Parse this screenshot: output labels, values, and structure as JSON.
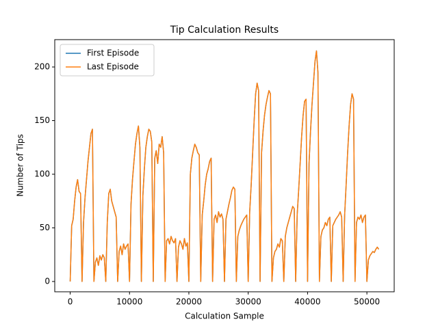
{
  "chart_data": {
    "type": "line",
    "title": "Tip Calculation Results",
    "xlabel": "Calculation Sample",
    "ylabel": "Number of Tips",
    "x": [
      0,
      250,
      500,
      750,
      1000,
      1250,
      1500,
      1750,
      2000,
      2250,
      2500,
      2750,
      3000,
      3250,
      3500,
      3750,
      4000,
      4250,
      4500,
      4750,
      5000,
      5250,
      5500,
      5750,
      6000,
      6250,
      6500,
      6750,
      7000,
      7250,
      7500,
      7750,
      8000,
      8250,
      8500,
      8750,
      9000,
      9250,
      9500,
      9750,
      10000,
      10250,
      10500,
      10750,
      11000,
      11250,
      11500,
      11750,
      12000,
      12250,
      12500,
      12750,
      13000,
      13250,
      13500,
      13750,
      14000,
      14250,
      14500,
      14750,
      15000,
      15250,
      15500,
      15750,
      16000,
      16250,
      16500,
      16750,
      17000,
      17250,
      17500,
      17750,
      18000,
      18250,
      18500,
      18750,
      19000,
      19250,
      19500,
      19750,
      20000,
      20250,
      20500,
      20750,
      21000,
      21250,
      21500,
      21750,
      22000,
      22250,
      22500,
      22750,
      23000,
      23250,
      23500,
      23750,
      24000,
      24250,
      24500,
      24750,
      25000,
      25250,
      25500,
      25750,
      26000,
      26250,
      26500,
      26750,
      27000,
      27250,
      27500,
      27750,
      28000,
      28250,
      28500,
      28750,
      29000,
      29250,
      29500,
      29750,
      30000,
      30250,
      30500,
      30750,
      31000,
      31250,
      31500,
      31750,
      32000,
      32250,
      32500,
      32750,
      33000,
      33250,
      33500,
      33750,
      34000,
      34250,
      34500,
      34750,
      35000,
      35250,
      35500,
      35750,
      36000,
      36250,
      36500,
      36750,
      37000,
      37250,
      37500,
      37750,
      38000,
      38250,
      38500,
      38750,
      39000,
      39250,
      39500,
      39750,
      40000,
      40250,
      40500,
      40750,
      41000,
      41250,
      41500,
      41750,
      42000,
      42250,
      42500,
      42750,
      43000,
      43250,
      43500,
      43750,
      44000,
      44250,
      44500,
      44750,
      45000,
      45250,
      45500,
      45750,
      46000,
      46250,
      46500,
      46750,
      47000,
      47250,
      47500,
      47750,
      48000,
      48250,
      48500,
      48750,
      49000,
      49250,
      49500,
      49750,
      50000,
      50250,
      50500,
      50750,
      51000,
      51250,
      51500,
      51750,
      52000
    ],
    "series": [
      {
        "name": "First Episode",
        "color": "#1f77b4",
        "values": [
          0,
          52,
          58,
          75,
          88,
          95,
          84,
          82,
          0,
          55,
          78,
          95,
          112,
          125,
          138,
          142,
          0,
          18,
          22,
          15,
          24,
          20,
          25,
          22,
          0,
          55,
          82,
          86,
          75,
          70,
          65,
          60,
          0,
          28,
          33,
          25,
          35,
          30,
          33,
          35,
          0,
          72,
          95,
          112,
          128,
          138,
          145,
          125,
          0,
          80,
          105,
          125,
          135,
          142,
          140,
          130,
          0,
          115,
          122,
          110,
          128,
          125,
          135,
          120,
          0,
          38,
          40,
          35,
          42,
          38,
          36,
          40,
          0,
          32,
          38,
          35,
          30,
          40,
          33,
          36,
          0,
          100,
          115,
          122,
          128,
          125,
          120,
          118,
          0,
          62,
          75,
          90,
          100,
          105,
          112,
          115,
          0,
          58,
          62,
          55,
          65,
          60,
          63,
          58,
          0,
          58,
          65,
          72,
          78,
          85,
          88,
          86,
          0,
          42,
          48,
          52,
          55,
          58,
          60,
          62,
          0,
          65,
          90,
          120,
          150,
          175,
          185,
          178,
          0,
          120,
          140,
          155,
          165,
          172,
          178,
          175,
          0,
          22,
          28,
          30,
          35,
          32,
          40,
          38,
          0,
          42,
          50,
          55,
          60,
          65,
          70,
          68,
          0,
          62,
          85,
          110,
          135,
          155,
          168,
          170,
          0,
          110,
          140,
          165,
          185,
          205,
          215,
          195,
          0,
          42,
          48,
          50,
          55,
          52,
          58,
          60,
          0,
          52,
          55,
          58,
          60,
          62,
          65,
          60,
          0,
          62,
          90,
          120,
          145,
          165,
          175,
          170,
          0,
          55,
          60,
          58,
          62,
          55,
          60,
          62,
          0,
          20,
          24,
          26,
          28,
          27,
          30,
          32,
          30
        ]
      },
      {
        "name": "Last Episode",
        "color": "#ff7f0e",
        "values": [
          0,
          52,
          58,
          75,
          88,
          95,
          84,
          82,
          0,
          55,
          78,
          95,
          112,
          125,
          138,
          142,
          0,
          18,
          22,
          15,
          24,
          20,
          25,
          22,
          0,
          55,
          82,
          86,
          75,
          70,
          65,
          60,
          0,
          28,
          33,
          25,
          35,
          30,
          33,
          35,
          0,
          72,
          95,
          112,
          128,
          138,
          145,
          125,
          0,
          80,
          105,
          125,
          135,
          142,
          140,
          130,
          0,
          115,
          122,
          110,
          128,
          125,
          135,
          120,
          0,
          38,
          40,
          35,
          42,
          38,
          36,
          40,
          0,
          32,
          38,
          35,
          30,
          40,
          33,
          36,
          0,
          100,
          115,
          122,
          128,
          125,
          120,
          118,
          0,
          62,
          75,
          90,
          100,
          105,
          112,
          115,
          0,
          58,
          62,
          55,
          65,
          60,
          63,
          58,
          0,
          58,
          65,
          72,
          78,
          85,
          88,
          86,
          0,
          42,
          48,
          52,
          55,
          58,
          60,
          62,
          0,
          65,
          90,
          120,
          150,
          175,
          185,
          178,
          0,
          120,
          140,
          155,
          165,
          172,
          178,
          175,
          0,
          22,
          28,
          30,
          35,
          32,
          40,
          38,
          0,
          42,
          50,
          55,
          60,
          65,
          70,
          68,
          0,
          62,
          85,
          110,
          135,
          155,
          168,
          170,
          0,
          110,
          140,
          165,
          185,
          205,
          215,
          195,
          0,
          42,
          48,
          50,
          55,
          52,
          58,
          60,
          0,
          52,
          55,
          58,
          60,
          62,
          65,
          60,
          0,
          62,
          90,
          120,
          145,
          165,
          175,
          170,
          0,
          55,
          60,
          58,
          62,
          55,
          60,
          62,
          0,
          20,
          24,
          26,
          28,
          27,
          30,
          32,
          30
        ]
      }
    ],
    "xlim": [
      -2600,
      54600
    ],
    "xticks": [
      0,
      10000,
      20000,
      30000,
      40000,
      50000
    ],
    "ylim": [
      -9.6,
      225.5
    ],
    "yticks": [
      0,
      50,
      100,
      150,
      200
    ],
    "legend": "upper left",
    "grid": false
  }
}
